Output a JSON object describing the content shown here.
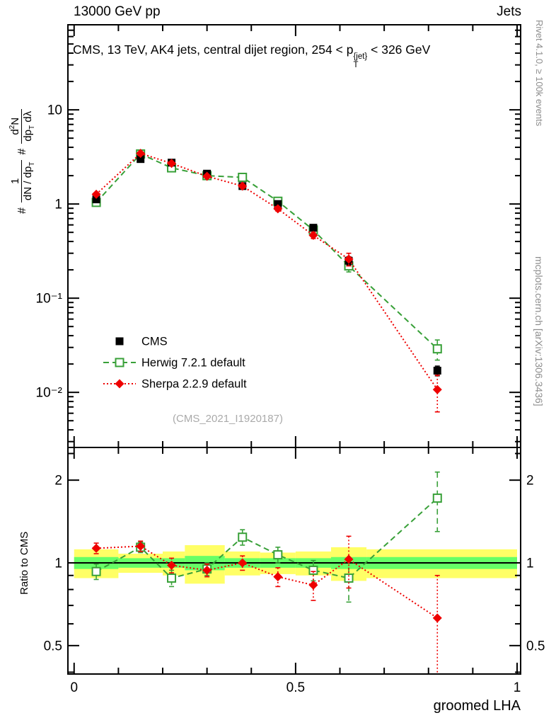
{
  "header": {
    "left": "13000 GeV pp",
    "right": "Jets"
  },
  "title": {
    "pre": "CMS, 13 TeV, AK4 jets, central dijet region, 254 < p",
    "sup": "{jet}",
    "sub": "T",
    "post": " < 326 GeV"
  },
  "watermark": "(CMS_2021_I1920187)",
  "side_notes": {
    "top_right": "Rivet 4.1.0, ≥ 100k events",
    "bottom_right": "mcplots.cern.ch [arXiv:1306.3436]"
  },
  "axes": {
    "x_label": "groomed LHA",
    "ratio_label": "Ratio to CMS",
    "main_y_label": {
      "h1": "#",
      "f1_num": "1",
      "f1_den": "dN / dp",
      "f1_den_sub": "T",
      "h2": "#",
      "f2_num_a": "d",
      "f2_num_sup": "2",
      "f2_num_b": "N",
      "f2_den_a": "dp",
      "f2_den_sub": "T",
      "f2_den_b": " dλ"
    }
  },
  "chart_data": [
    {
      "type": "scatter",
      "panel": "main",
      "y_scale": "log",
      "xlim": [
        -0.014,
        1.008
      ],
      "ylim": [
        0.0026,
        80
      ],
      "x": [
        0.05,
        0.15,
        0.22,
        0.3,
        0.38,
        0.46,
        0.54,
        0.62,
        0.82
      ],
      "series": [
        {
          "name": "CMS",
          "color": "#000000",
          "marker": "filled-square",
          "line": "none",
          "values": [
            1.12,
            3.0,
            2.75,
            2.1,
            1.55,
            1.0,
            0.56,
            0.25,
            0.017
          ],
          "errors": [
            0.06,
            0.15,
            0.12,
            0.1,
            0.08,
            0.05,
            0.035,
            0.025,
            0.002
          ]
        },
        {
          "name": "Herwig 7.2.1 default",
          "color": "#38a038",
          "marker": "open-square",
          "line": "dashed",
          "values": [
            1.04,
            3.4,
            2.42,
            2.0,
            1.92,
            1.07,
            0.53,
            0.22,
            0.029
          ],
          "errors": [
            0.04,
            0.12,
            0.1,
            0.08,
            0.08,
            0.05,
            0.03,
            0.03,
            0.007
          ]
        },
        {
          "name": "Sherpa 2.2.9 default",
          "color": "#ee0000",
          "marker": "filled-diamond",
          "line": "dotted",
          "values": [
            1.27,
            3.45,
            2.7,
            1.97,
            1.55,
            0.89,
            0.465,
            0.26,
            0.0107
          ],
          "errors": [
            0.05,
            0.12,
            0.1,
            0.08,
            0.07,
            0.05,
            0.035,
            0.04,
            0.0045
          ]
        }
      ],
      "yticks": [
        {
          "v": 10,
          "label": "10"
        },
        {
          "v": 1,
          "label": "1"
        },
        {
          "v": 0.1,
          "label": "10⁻¹"
        },
        {
          "v": 0.01,
          "label": "10⁻²"
        }
      ],
      "xticks": [
        {
          "v": 0,
          "label": "0"
        },
        {
          "v": 0.5,
          "label": "0.5"
        },
        {
          "v": 1,
          "label": "1"
        }
      ]
    },
    {
      "type": "ratio",
      "panel": "ratio",
      "y_scale": "log",
      "ylim": [
        0.394,
        2.63
      ],
      "reference": 1,
      "bin_edges": [
        0,
        0.1,
        0.2,
        0.25,
        0.34,
        0.42,
        0.5,
        0.58,
        0.66,
        1.0
      ],
      "bands": {
        "yellow": {
          "color": "#ffff66",
          "ranges": [
            [
              0.88,
              1.12
            ],
            [
              0.92,
              1.08
            ],
            [
              0.9,
              1.1
            ],
            [
              0.84,
              1.16
            ],
            [
              0.9,
              1.1
            ],
            [
              0.91,
              1.09
            ],
            [
              0.9,
              1.1
            ],
            [
              0.86,
              1.14
            ],
            [
              0.88,
              1.12
            ]
          ]
        },
        "green": {
          "color": "#66ff66",
          "ranges": [
            [
              0.95,
              1.05
            ],
            [
              0.96,
              1.04
            ],
            [
              0.96,
              1.04
            ],
            [
              0.94,
              1.06
            ],
            [
              0.96,
              1.04
            ],
            [
              0.96,
              1.04
            ],
            [
              0.96,
              1.04
            ],
            [
              0.95,
              1.05
            ],
            [
              0.95,
              1.05
            ]
          ]
        }
      },
      "x": [
        0.05,
        0.15,
        0.22,
        0.3,
        0.38,
        0.46,
        0.54,
        0.62,
        0.82
      ],
      "series": [
        {
          "name": "Herwig 7.2.1 default",
          "color": "#38a038",
          "marker": "open-square",
          "line": "dashed",
          "values": [
            0.93,
            1.14,
            0.88,
            0.95,
            1.24,
            1.07,
            0.94,
            0.88,
            1.72
          ],
          "errors": [
            0.06,
            0.05,
            0.06,
            0.05,
            0.08,
            0.07,
            0.08,
            0.16,
            0.42
          ]
        },
        {
          "name": "Sherpa 2.2.9 default",
          "color": "#ee0000",
          "marker": "filled-diamond",
          "line": "dotted",
          "values": [
            1.13,
            1.15,
            0.98,
            0.94,
            1.0,
            0.89,
            0.83,
            1.03,
            0.63
          ],
          "errors": [
            0.05,
            0.05,
            0.06,
            0.05,
            0.06,
            0.07,
            0.1,
            0.22,
            0.27
          ]
        }
      ],
      "yticks": [
        {
          "v": 0.5,
          "label": "0.5"
        },
        {
          "v": 1,
          "label": "1"
        },
        {
          "v": 2,
          "label": "2"
        }
      ]
    }
  ]
}
